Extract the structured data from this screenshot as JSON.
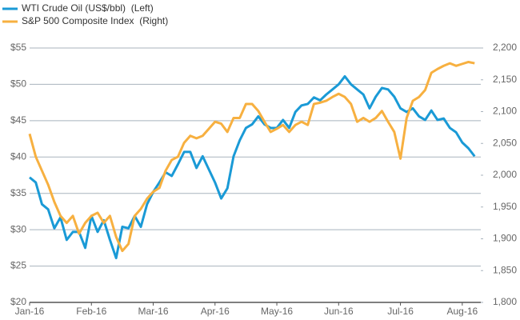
{
  "chart_data": {
    "type": "line",
    "x": [
      0,
      0.1,
      0.2,
      0.3,
      0.4,
      0.5,
      0.6,
      0.7,
      0.8,
      0.9,
      1,
      1.1,
      1.2,
      1.3,
      1.4,
      1.5,
      1.6,
      1.7,
      1.8,
      1.9,
      2,
      2.1,
      2.2,
      2.3,
      2.4,
      2.5,
      2.6,
      2.7,
      2.8,
      2.9,
      3,
      3.1,
      3.2,
      3.3,
      3.4,
      3.5,
      3.6,
      3.7,
      3.8,
      3.9,
      4,
      4.1,
      4.2,
      4.3,
      4.4,
      4.5,
      4.6,
      4.7,
      4.8,
      4.9,
      5,
      5.1,
      5.2,
      5.3,
      5.4,
      5.5,
      5.6,
      5.7,
      5.8,
      5.9,
      6,
      6.1,
      6.2,
      6.3,
      6.4,
      6.5,
      6.6,
      6.7,
      6.8,
      6.9,
      7,
      7.1,
      7.2
    ],
    "series": [
      {
        "name": "WTI Crude Oil (US$/bbl)  (Left)",
        "color": "#1a9ad6",
        "values": [
          37.2,
          36.5,
          33.5,
          32.8,
          30.2,
          31.7,
          28.6,
          29.7,
          29.7,
          27.5,
          31.9,
          29.7,
          31.3,
          28.6,
          26.1,
          30.4,
          30.2,
          31.9,
          30.4,
          33.5,
          35.2,
          36.5,
          37.9,
          37.4,
          39.0,
          40.7,
          40.7,
          38.5,
          40.1,
          38.3,
          36.5,
          34.3,
          35.7,
          40.1,
          42.3,
          44.0,
          44.5,
          45.6,
          44.5,
          44.0,
          44.0,
          45.1,
          44.0,
          46.2,
          47.1,
          47.3,
          48.2,
          47.8,
          48.6,
          49.3,
          50.0,
          51.1,
          50.0,
          49.3,
          48.6,
          46.7,
          48.3,
          49.5,
          49.3,
          48.3,
          46.7,
          46.2,
          46.7,
          45.6,
          45.1,
          46.4,
          45.1,
          45.3,
          44.0,
          43.4,
          42.0,
          41.2,
          40.1
        ]
      },
      {
        "name": "S&P 500 Composite Index  (Right)",
        "color": "#f7b040",
        "axis": "y2",
        "values": [
          2065,
          2029,
          2007,
          1985,
          1958,
          1936,
          1925,
          1936,
          1908,
          1925,
          1936,
          1941,
          1925,
          1936,
          1903,
          1881,
          1892,
          1936,
          1947,
          1963,
          1974,
          1980,
          2007,
          2024,
          2029,
          2051,
          2062,
          2058,
          2062,
          2073,
          2084,
          2081,
          2068,
          2090,
          2090,
          2112,
          2112,
          2101,
          2084,
          2068,
          2073,
          2079,
          2068,
          2079,
          2084,
          2079,
          2112,
          2114,
          2117,
          2123,
          2128,
          2123,
          2112,
          2084,
          2090,
          2084,
          2090,
          2101,
          2084,
          2068,
          2026,
          2090,
          2117,
          2123,
          2134,
          2161,
          2167,
          2172,
          2176,
          2172,
          2175,
          2178,
          2176
        ]
      }
    ],
    "xlim": [
      0,
      7.3
    ],
    "xticks": [
      {
        "value": 0,
        "label": "Jan-16"
      },
      {
        "value": 1,
        "label": "Feb-16"
      },
      {
        "value": 2,
        "label": "Mar-16"
      },
      {
        "value": 3,
        "label": "Apr-16"
      },
      {
        "value": 4,
        "label": "May-16"
      },
      {
        "value": 5,
        "label": "Jun-16"
      },
      {
        "value": 6,
        "label": "Jul-16"
      },
      {
        "value": 7,
        "label": "Aug-16"
      }
    ],
    "ylim": [
      20,
      55
    ],
    "yticks": [
      {
        "value": 20,
        "label": "$20"
      },
      {
        "value": 25,
        "label": "$25"
      },
      {
        "value": 30,
        "label": "$30"
      },
      {
        "value": 35,
        "label": "$35"
      },
      {
        "value": 40,
        "label": "$40"
      },
      {
        "value": 45,
        "label": "$45"
      },
      {
        "value": 50,
        "label": "$50"
      },
      {
        "value": 55,
        "label": "$55"
      }
    ],
    "y2lim": [
      1800,
      2200
    ],
    "y2ticks": [
      {
        "value": 1800,
        "label": "1,800"
      },
      {
        "value": 1850,
        "label": "1,850"
      },
      {
        "value": 1900,
        "label": "1,900"
      },
      {
        "value": 1950,
        "label": "1,950"
      },
      {
        "value": 2000,
        "label": "2,000"
      },
      {
        "value": 2050,
        "label": "2,050"
      },
      {
        "value": 2100,
        "label": "2,100"
      },
      {
        "value": 2150,
        "label": "2,150"
      },
      {
        "value": 2200,
        "label": "2,200"
      }
    ],
    "grid": true,
    "legend": "top-left"
  }
}
